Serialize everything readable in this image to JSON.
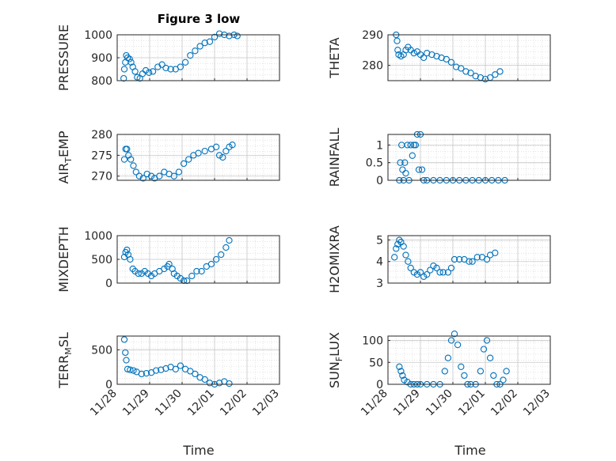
{
  "figure": {
    "title": "Figure 3 low",
    "x_label": "Time",
    "x_ticks": [
      "11/28",
      "11/29",
      "11/30",
      "12/01",
      "12/02",
      "12/03"
    ]
  },
  "style": {
    "marker_color": "#0072BD",
    "grid_color": "#d9d9d9",
    "axis_color": "#262626"
  },
  "chart_data": [
    {
      "type": "scatter",
      "ylabel": "PRESSURE",
      "ylim": [
        800,
        1000
      ],
      "yticks": [
        "800",
        "900",
        "1000"
      ],
      "xlim": [
        0,
        5
      ],
      "grid": true,
      "marker": "open-circle",
      "points": [
        [
          0.2,
          810
        ],
        [
          0.22,
          850
        ],
        [
          0.25,
          880
        ],
        [
          0.28,
          910
        ],
        [
          0.32,
          900
        ],
        [
          0.38,
          895
        ],
        [
          0.43,
          880
        ],
        [
          0.48,
          860
        ],
        [
          0.55,
          840
        ],
        [
          0.62,
          815
        ],
        [
          0.7,
          810
        ],
        [
          0.78,
          830
        ],
        [
          0.88,
          845
        ],
        [
          0.98,
          835
        ],
        [
          1.1,
          840
        ],
        [
          1.25,
          860
        ],
        [
          1.38,
          870
        ],
        [
          1.5,
          855
        ],
        [
          1.65,
          850
        ],
        [
          1.8,
          850
        ],
        [
          1.95,
          860
        ],
        [
          2.1,
          880
        ],
        [
          2.25,
          910
        ],
        [
          2.4,
          930
        ],
        [
          2.55,
          950
        ],
        [
          2.7,
          965
        ],
        [
          2.85,
          970
        ],
        [
          3.0,
          990
        ],
        [
          3.15,
          1005
        ],
        [
          3.3,
          1000
        ],
        [
          3.45,
          995
        ],
        [
          3.6,
          1000
        ],
        [
          3.7,
          995
        ]
      ]
    },
    {
      "type": "scatter",
      "ylabel": "THETA",
      "ylim": [
        275,
        290
      ],
      "yticks": [
        "280",
        "290"
      ],
      "xlim": [
        0,
        5
      ],
      "grid": true,
      "marker": "open-circle",
      "points": [
        [
          0.25,
          290
        ],
        [
          0.28,
          288
        ],
        [
          0.3,
          285
        ],
        [
          0.33,
          283.5
        ],
        [
          0.4,
          283
        ],
        [
          0.48,
          283.5
        ],
        [
          0.55,
          285
        ],
        [
          0.62,
          286
        ],
        [
          0.7,
          285
        ],
        [
          0.8,
          284
        ],
        [
          0.9,
          284.5
        ],
        [
          1.0,
          283.5
        ],
        [
          1.1,
          282.5
        ],
        [
          1.2,
          284
        ],
        [
          1.35,
          283.5
        ],
        [
          1.5,
          283
        ],
        [
          1.65,
          282.5
        ],
        [
          1.8,
          282
        ],
        [
          1.95,
          281
        ],
        [
          2.1,
          279.5
        ],
        [
          2.25,
          279
        ],
        [
          2.4,
          278
        ],
        [
          2.55,
          277.5
        ],
        [
          2.7,
          276.5
        ],
        [
          2.85,
          276
        ],
        [
          3.0,
          275.5
        ],
        [
          3.15,
          276
        ],
        [
          3.3,
          277
        ],
        [
          3.45,
          278
        ]
      ]
    },
    {
      "type": "scatter",
      "ylabel_parts": [
        "AIR",
        "T",
        "EMP"
      ],
      "ylim": [
        269,
        280
      ],
      "yticks": [
        "270",
        "275",
        "280"
      ],
      "xlim": [
        0,
        5
      ],
      "grid": true,
      "marker": "open-circle",
      "points": [
        [
          0.22,
          274
        ],
        [
          0.26,
          276.5
        ],
        [
          0.3,
          276.5
        ],
        [
          0.35,
          275
        ],
        [
          0.42,
          274
        ],
        [
          0.5,
          272.5
        ],
        [
          0.58,
          271
        ],
        [
          0.68,
          270
        ],
        [
          0.8,
          269.5
        ],
        [
          0.92,
          270.5
        ],
        [
          1.05,
          270
        ],
        [
          1.15,
          269.5
        ],
        [
          1.3,
          270
        ],
        [
          1.45,
          271
        ],
        [
          1.6,
          270.5
        ],
        [
          1.75,
          270
        ],
        [
          1.9,
          271
        ],
        [
          2.05,
          273
        ],
        [
          2.2,
          274
        ],
        [
          2.35,
          275
        ],
        [
          2.5,
          275.5
        ],
        [
          2.7,
          276
        ],
        [
          2.9,
          276.5
        ],
        [
          3.05,
          277
        ],
        [
          3.15,
          275
        ],
        [
          3.25,
          274.5
        ],
        [
          3.35,
          276
        ],
        [
          3.45,
          277
        ],
        [
          3.55,
          277.5
        ]
      ]
    },
    {
      "type": "scatter",
      "ylabel": "RAINFALL",
      "ylim": [
        0,
        1.3
      ],
      "yticks": [
        "0",
        "0.5",
        "1"
      ],
      "xlim": [
        0,
        5
      ],
      "grid": true,
      "marker": "open-circle",
      "points": [
        [
          0.35,
          0
        ],
        [
          0.38,
          0.5
        ],
        [
          0.42,
          1
        ],
        [
          0.45,
          0.3
        ],
        [
          0.48,
          0
        ],
        [
          0.52,
          0.5
        ],
        [
          0.55,
          0.2
        ],
        [
          0.6,
          1
        ],
        [
          0.65,
          0
        ],
        [
          0.7,
          1
        ],
        [
          0.75,
          0.7
        ],
        [
          0.8,
          1
        ],
        [
          0.85,
          1
        ],
        [
          0.9,
          1.3
        ],
        [
          0.95,
          0.3
        ],
        [
          1.0,
          1.3
        ],
        [
          1.05,
          0.3
        ],
        [
          1.1,
          0
        ],
        [
          1.2,
          0
        ],
        [
          1.4,
          0
        ],
        [
          1.6,
          0
        ],
        [
          1.8,
          0
        ],
        [
          2.0,
          0
        ],
        [
          2.2,
          0
        ],
        [
          2.4,
          0
        ],
        [
          2.6,
          0
        ],
        [
          2.8,
          0
        ],
        [
          3.0,
          0
        ],
        [
          3.2,
          0
        ],
        [
          3.4,
          0
        ],
        [
          3.6,
          0
        ]
      ]
    },
    {
      "type": "scatter",
      "ylabel": "MIXDEPTH",
      "ylim": [
        0,
        1000
      ],
      "yticks": [
        "0",
        "500",
        "1000"
      ],
      "xlim": [
        0,
        5
      ],
      "grid": true,
      "marker": "open-circle",
      "points": [
        [
          0.22,
          550
        ],
        [
          0.26,
          650
        ],
        [
          0.3,
          700
        ],
        [
          0.34,
          600
        ],
        [
          0.4,
          500
        ],
        [
          0.48,
          300
        ],
        [
          0.55,
          250
        ],
        [
          0.65,
          200
        ],
        [
          0.75,
          200
        ],
        [
          0.85,
          250
        ],
        [
          0.95,
          200
        ],
        [
          1.05,
          150
        ],
        [
          1.15,
          200
        ],
        [
          1.3,
          250
        ],
        [
          1.45,
          300
        ],
        [
          1.55,
          350
        ],
        [
          1.6,
          400
        ],
        [
          1.7,
          300
        ],
        [
          1.75,
          200
        ],
        [
          1.85,
          150
        ],
        [
          1.95,
          100
        ],
        [
          2.05,
          50
        ],
        [
          2.15,
          50
        ],
        [
          2.3,
          150
        ],
        [
          2.45,
          250
        ],
        [
          2.6,
          250
        ],
        [
          2.75,
          350
        ],
        [
          2.9,
          400
        ],
        [
          3.05,
          500
        ],
        [
          3.2,
          600
        ],
        [
          3.35,
          750
        ],
        [
          3.45,
          900
        ]
      ]
    },
    {
      "type": "scatter",
      "ylabel": "H2OMIXRA",
      "ylim": [
        3,
        5.2
      ],
      "yticks": [
        "3",
        "4",
        "5"
      ],
      "xlim": [
        0,
        5
      ],
      "grid": true,
      "marker": "open-circle",
      "points": [
        [
          0.2,
          4.2
        ],
        [
          0.25,
          4.6
        ],
        [
          0.3,
          4.8
        ],
        [
          0.35,
          5.0
        ],
        [
          0.4,
          4.9
        ],
        [
          0.48,
          4.7
        ],
        [
          0.55,
          4.3
        ],
        [
          0.62,
          4.0
        ],
        [
          0.7,
          3.7
        ],
        [
          0.8,
          3.5
        ],
        [
          0.9,
          3.4
        ],
        [
          1.0,
          3.5
        ],
        [
          1.1,
          3.3
        ],
        [
          1.2,
          3.4
        ],
        [
          1.3,
          3.6
        ],
        [
          1.4,
          3.8
        ],
        [
          1.5,
          3.7
        ],
        [
          1.6,
          3.5
        ],
        [
          1.7,
          3.5
        ],
        [
          1.85,
          3.5
        ],
        [
          1.95,
          3.7
        ],
        [
          2.05,
          4.1
        ],
        [
          2.2,
          4.1
        ],
        [
          2.35,
          4.1
        ],
        [
          2.5,
          4.0
        ],
        [
          2.6,
          4.0
        ],
        [
          2.75,
          4.2
        ],
        [
          2.9,
          4.2
        ],
        [
          3.05,
          4.1
        ],
        [
          3.15,
          4.3
        ],
        [
          3.3,
          4.4
        ]
      ]
    },
    {
      "type": "scatter",
      "ylabel_parts": [
        "TERR",
        "M",
        "SL"
      ],
      "ylim": [
        0,
        700
      ],
      "yticks": [
        "0",
        "500"
      ],
      "xlim": [
        0,
        5
      ],
      "grid": true,
      "marker": "open-circle",
      "points": [
        [
          0.22,
          650
        ],
        [
          0.25,
          460
        ],
        [
          0.28,
          350
        ],
        [
          0.32,
          220
        ],
        [
          0.4,
          210
        ],
        [
          0.5,
          200
        ],
        [
          0.6,
          180
        ],
        [
          0.75,
          150
        ],
        [
          0.9,
          160
        ],
        [
          1.05,
          170
        ],
        [
          1.2,
          200
        ],
        [
          1.35,
          210
        ],
        [
          1.5,
          230
        ],
        [
          1.65,
          250
        ],
        [
          1.8,
          220
        ],
        [
          1.95,
          270
        ],
        [
          2.1,
          220
        ],
        [
          2.25,
          190
        ],
        [
          2.4,
          150
        ],
        [
          2.55,
          100
        ],
        [
          2.7,
          70
        ],
        [
          2.85,
          20
        ],
        [
          3.0,
          0
        ],
        [
          3.15,
          20
        ],
        [
          3.3,
          40
        ],
        [
          3.45,
          10
        ]
      ]
    },
    {
      "type": "scatter",
      "ylabel_parts": [
        "SUN",
        "F",
        "LUX"
      ],
      "ylim": [
        0,
        110
      ],
      "yticks": [
        "0",
        "50",
        "100"
      ],
      "xlim": [
        0,
        5
      ],
      "grid": true,
      "marker": "open-circle",
      "points": [
        [
          0.35,
          40
        ],
        [
          0.4,
          30
        ],
        [
          0.45,
          20
        ],
        [
          0.5,
          10
        ],
        [
          0.6,
          5
        ],
        [
          0.7,
          0
        ],
        [
          0.8,
          0
        ],
        [
          0.9,
          0
        ],
        [
          1.0,
          0
        ],
        [
          1.2,
          0
        ],
        [
          1.4,
          0
        ],
        [
          1.6,
          0
        ],
        [
          1.75,
          30
        ],
        [
          1.85,
          60
        ],
        [
          1.95,
          100
        ],
        [
          2.05,
          115
        ],
        [
          2.15,
          90
        ],
        [
          2.25,
          40
        ],
        [
          2.35,
          20
        ],
        [
          2.45,
          0
        ],
        [
          2.55,
          0
        ],
        [
          2.7,
          0
        ],
        [
          2.85,
          30
        ],
        [
          2.95,
          80
        ],
        [
          3.05,
          100
        ],
        [
          3.15,
          60
        ],
        [
          3.25,
          20
        ],
        [
          3.35,
          0
        ],
        [
          3.45,
          0
        ],
        [
          3.55,
          10
        ],
        [
          3.65,
          30
        ]
      ]
    }
  ]
}
